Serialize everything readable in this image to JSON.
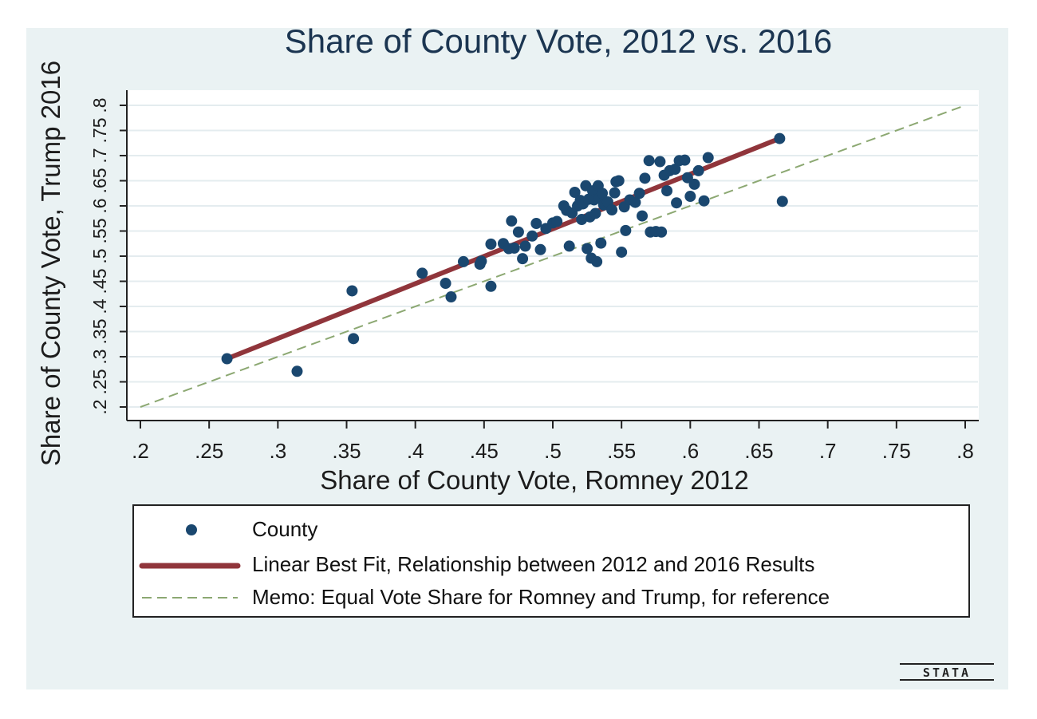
{
  "chart_data": {
    "type": "scatter",
    "title": "Share of County Vote, 2012 vs. 2016",
    "xlabel": "Share of County Vote, Romney 2012",
    "ylabel": "Share of County Vote, Trump 2016",
    "xlim": [
      0.2,
      0.8
    ],
    "ylim": [
      0.2,
      0.8
    ],
    "x_ticks": [
      ".2",
      ".25",
      ".3",
      ".35",
      ".4",
      ".45",
      ".5",
      ".55",
      ".6",
      ".65",
      ".7",
      ".75",
      ".8"
    ],
    "y_ticks": [
      ".2",
      ".25",
      ".3",
      ".35",
      ".4",
      ".45",
      ".5",
      ".55",
      ".6",
      ".65",
      ".7",
      ".75",
      ".8"
    ],
    "grid": "horizontal",
    "legend_position": "bottom",
    "series": [
      {
        "name": "County",
        "kind": "scatter",
        "color": "#1a476f",
        "points": [
          [
            0.263,
            0.296
          ],
          [
            0.314,
            0.271
          ],
          [
            0.354,
            0.431
          ],
          [
            0.355,
            0.336
          ],
          [
            0.405,
            0.466
          ],
          [
            0.422,
            0.446
          ],
          [
            0.426,
            0.419
          ],
          [
            0.435,
            0.489
          ],
          [
            0.447,
            0.484
          ],
          [
            0.448,
            0.49
          ],
          [
            0.455,
            0.44
          ],
          [
            0.455,
            0.524
          ],
          [
            0.464,
            0.525
          ],
          [
            0.468,
            0.515
          ],
          [
            0.472,
            0.516
          ],
          [
            0.47,
            0.57
          ],
          [
            0.475,
            0.548
          ],
          [
            0.478,
            0.495
          ],
          [
            0.48,
            0.52
          ],
          [
            0.485,
            0.54
          ],
          [
            0.488,
            0.565
          ],
          [
            0.491,
            0.513
          ],
          [
            0.495,
            0.555
          ],
          [
            0.5,
            0.566
          ],
          [
            0.503,
            0.569
          ],
          [
            0.508,
            0.6
          ],
          [
            0.51,
            0.591
          ],
          [
            0.512,
            0.52
          ],
          [
            0.514,
            0.586
          ],
          [
            0.516,
            0.627
          ],
          [
            0.518,
            0.6
          ],
          [
            0.52,
            0.611
          ],
          [
            0.521,
            0.573
          ],
          [
            0.522,
            0.604
          ],
          [
            0.524,
            0.64
          ],
          [
            0.525,
            0.515
          ],
          [
            0.526,
            0.613
          ],
          [
            0.527,
            0.578
          ],
          [
            0.528,
            0.496
          ],
          [
            0.529,
            0.63
          ],
          [
            0.53,
            0.612
          ],
          [
            0.531,
            0.585
          ],
          [
            0.532,
            0.489
          ],
          [
            0.533,
            0.64
          ],
          [
            0.534,
            0.616
          ],
          [
            0.535,
            0.526
          ],
          [
            0.536,
            0.625
          ],
          [
            0.537,
            0.602
          ],
          [
            0.54,
            0.608
          ],
          [
            0.543,
            0.592
          ],
          [
            0.545,
            0.626
          ],
          [
            0.546,
            0.648
          ],
          [
            0.548,
            0.65
          ],
          [
            0.55,
            0.508
          ],
          [
            0.552,
            0.598
          ],
          [
            0.553,
            0.551
          ],
          [
            0.556,
            0.612
          ],
          [
            0.56,
            0.607
          ],
          [
            0.563,
            0.625
          ],
          [
            0.565,
            0.58
          ],
          [
            0.567,
            0.655
          ],
          [
            0.57,
            0.69
          ],
          [
            0.571,
            0.548
          ],
          [
            0.575,
            0.549
          ],
          [
            0.578,
            0.688
          ],
          [
            0.579,
            0.548
          ],
          [
            0.581,
            0.661
          ],
          [
            0.583,
            0.63
          ],
          [
            0.585,
            0.67
          ],
          [
            0.589,
            0.673
          ],
          [
            0.59,
            0.606
          ],
          [
            0.592,
            0.69
          ],
          [
            0.596,
            0.691
          ],
          [
            0.598,
            0.656
          ],
          [
            0.6,
            0.619
          ],
          [
            0.603,
            0.643
          ],
          [
            0.606,
            0.67
          ],
          [
            0.61,
            0.61
          ],
          [
            0.613,
            0.696
          ],
          [
            0.665,
            0.734
          ],
          [
            0.667,
            0.609
          ]
        ]
      },
      {
        "name": "Linear Best Fit, Relationship between 2012 and 2016 Results",
        "kind": "line",
        "color": "#90353b",
        "x": [
          0.263,
          0.665
        ],
        "y": [
          0.296,
          0.734
        ]
      },
      {
        "name": "Memo: Equal Vote Share for Romney and Trump, for reference",
        "kind": "line",
        "dash": true,
        "color": "#8ca872",
        "x": [
          0.2,
          0.8
        ],
        "y": [
          0.2,
          0.8
        ]
      }
    ]
  },
  "logo_text": "STATA"
}
